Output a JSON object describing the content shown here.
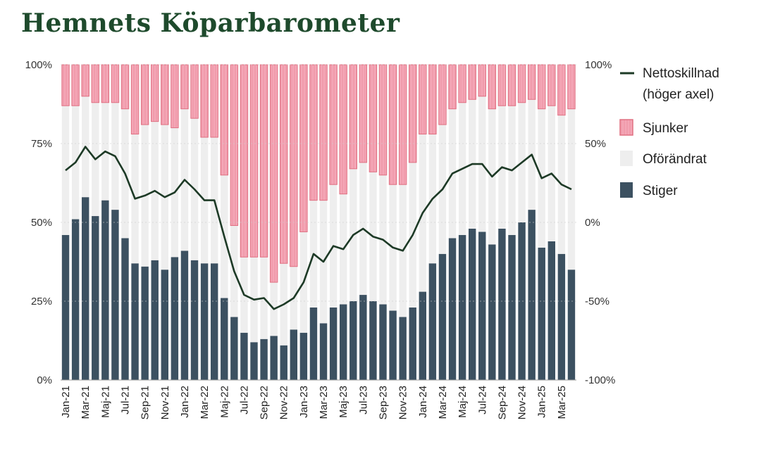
{
  "title": "Hemnets Köparbarometer",
  "colors": {
    "title": "#1e4a2c",
    "stiger": "#3c5161",
    "oforandrat": "#eeeeee",
    "sjunker_fill": "#f4a6b6",
    "sjunker_edge": "#e07082",
    "netto": "#1d3a26"
  },
  "chart_data": {
    "type": "bar",
    "stacked": true,
    "categories": [
      "Jan-21",
      "Feb-21",
      "Mar-21",
      "Apr-21",
      "Maj-21",
      "Jun-21",
      "Jul-21",
      "Aug-21",
      "Sep-21",
      "Okt-21",
      "Nov-21",
      "Dec-21",
      "Jan-22",
      "Feb-22",
      "Mar-22",
      "Apr-22",
      "Maj-22",
      "Jun-22",
      "Jul-22",
      "Aug-22",
      "Sep-22",
      "Okt-22",
      "Nov-22",
      "Dec-22",
      "Jan-23",
      "Feb-23",
      "Mar-23",
      "Apr-23",
      "Maj-23",
      "Jun-23",
      "Jul-23",
      "Aug-23",
      "Sep-23",
      "Okt-23",
      "Nov-23",
      "Dec-23",
      "Jan-24",
      "Feb-24",
      "Mar-24",
      "Apr-24",
      "Maj-24",
      "Jun-24",
      "Jul-24",
      "Aug-24",
      "Sep-24",
      "Okt-24",
      "Nov-24",
      "Dec-24",
      "Jan-25",
      "Feb-25",
      "Mar-25",
      "Apr-25"
    ],
    "x_tick_labels": [
      "Jan-21",
      "Mar-21",
      "Maj-21",
      "Jul-21",
      "Sep-21",
      "Nov-21",
      "Jan-22",
      "Mar-22",
      "Maj-22",
      "Jul-22",
      "Sep-22",
      "Nov-22",
      "Jan-23",
      "Mar-23",
      "Maj-23",
      "Jul-23",
      "Sep-23",
      "Nov-23",
      "Jan-24",
      "Mar-24",
      "Maj-24",
      "Jul-24",
      "Sep-24",
      "Nov-24",
      "Jan-25",
      "Mar-25"
    ],
    "series": [
      {
        "name": "Stiger",
        "axis": "left",
        "values": [
          46,
          51,
          58,
          52,
          57,
          54,
          45,
          37,
          36,
          38,
          35,
          39,
          41,
          38,
          37,
          37,
          26,
          20,
          15,
          12,
          13,
          14,
          11,
          16,
          15,
          23,
          18,
          23,
          24,
          25,
          27,
          25,
          24,
          22,
          20,
          23,
          28,
          37,
          40,
          45,
          46,
          48,
          47,
          43,
          48,
          46,
          50,
          54,
          42,
          44,
          40,
          35
        ]
      },
      {
        "name": "Oförändrat",
        "axis": "left",
        "values": [
          41,
          36,
          32,
          36,
          31,
          34,
          41,
          41,
          45,
          44,
          46,
          41,
          45,
          45,
          40,
          40,
          39,
          29,
          24,
          27,
          26,
          17,
          26,
          20,
          32,
          34,
          39,
          39,
          35,
          42,
          42,
          41,
          41,
          40,
          42,
          46,
          50,
          41,
          41,
          41,
          42,
          41,
          43,
          43,
          39,
          41,
          38,
          35,
          44,
          43,
          44,
          51
        ]
      },
      {
        "name": "Sjunker",
        "axis": "left",
        "values": [
          13,
          13,
          10,
          12,
          12,
          12,
          14,
          22,
          19,
          18,
          19,
          20,
          14,
          17,
          23,
          23,
          35,
          51,
          61,
          61,
          61,
          69,
          63,
          64,
          53,
          43,
          43,
          38,
          41,
          33,
          31,
          34,
          35,
          38,
          38,
          31,
          22,
          22,
          19,
          14,
          12,
          11,
          10,
          14,
          13,
          13,
          12,
          11,
          14,
          13,
          16,
          14
        ]
      },
      {
        "name": "Nettoskillnad (höger axel)",
        "axis": "right",
        "type": "line",
        "values": [
          33,
          38,
          48,
          40,
          45,
          42,
          31,
          15,
          17,
          20,
          16,
          19,
          27,
          21,
          14,
          14,
          -9,
          -31,
          -46,
          -49,
          -48,
          -55,
          -52,
          -48,
          -38,
          -20,
          -25,
          -15,
          -17,
          -8,
          -4,
          -9,
          -11,
          -16,
          -18,
          -8,
          6,
          15,
          21,
          31,
          34,
          37,
          37,
          29,
          35,
          33,
          38,
          43,
          28,
          31,
          24,
          21
        ]
      }
    ],
    "ylim": [
      0,
      100
    ],
    "y_ticks_left": [
      "0%",
      "25%",
      "50%",
      "75%",
      "100%"
    ],
    "y2lim": [
      -100,
      100
    ],
    "y_ticks_right": [
      "-100%",
      "-50%",
      "0%",
      "50%",
      "100%"
    ],
    "legend_position": "right",
    "legend": [
      "Nettoskillnad",
      "(höger axel)",
      "Sjunker",
      "Oförändrat",
      "Stiger"
    ]
  }
}
